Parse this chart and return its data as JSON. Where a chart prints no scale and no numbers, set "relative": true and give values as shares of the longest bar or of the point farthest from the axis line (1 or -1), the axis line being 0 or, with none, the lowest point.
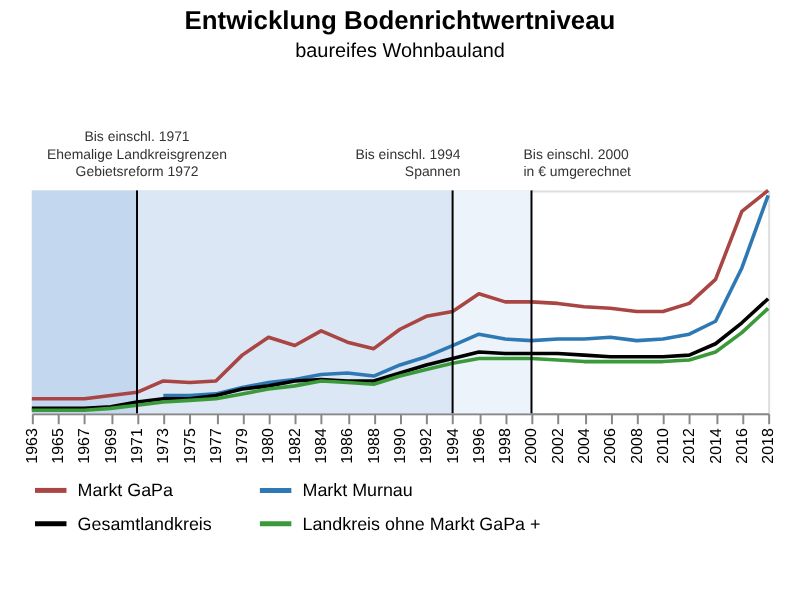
{
  "chart_data": {
    "type": "line",
    "title": "Entwicklung Bodenrichtwertniveau",
    "subtitle": "baureifes Wohnbauland",
    "relative": true,
    "categories": [
      "1963",
      "1965",
      "1967",
      "1969",
      "1971",
      "1973",
      "1975",
      "1977",
      "1979",
      "1980",
      "1982",
      "1984",
      "1986",
      "1988",
      "1990",
      "1992",
      "1994",
      "1996",
      "1998",
      "2000",
      "2002",
      "2004",
      "2006",
      "2008",
      "2010",
      "2012",
      "2014",
      "2016",
      "2018"
    ],
    "series": [
      {
        "name": "Markt GaPa",
        "color": "#a94543",
        "values": [
          0.065,
          0.065,
          0.065,
          0.08,
          0.094,
          0.145,
          0.138,
          0.145,
          0.261,
          0.341,
          0.304,
          0.37,
          0.319,
          0.29,
          0.377,
          0.435,
          0.457,
          0.536,
          0.5,
          0.5,
          0.493,
          0.478,
          0.471,
          0.457,
          0.457,
          0.493,
          0.601,
          0.906,
          1
        ]
      },
      {
        "name": "Markt Murnau",
        "color": "#2e78b4",
        "values": [
          null,
          null,
          null,
          null,
          null,
          0.08,
          0.08,
          0.087,
          0.116,
          0.138,
          0.152,
          0.174,
          0.181,
          0.167,
          0.217,
          0.254,
          0.304,
          0.355,
          0.333,
          0.326,
          0.333,
          0.333,
          0.341,
          0.326,
          0.333,
          0.355,
          0.413,
          0.652,
          0.978
        ]
      },
      {
        "name": "Gesamtlandkreis",
        "color": "#000000",
        "values": [
          0.022,
          0.022,
          0.022,
          0.029,
          0.051,
          0.065,
          0.065,
          0.08,
          0.109,
          0.123,
          0.145,
          0.152,
          0.145,
          0.145,
          0.181,
          0.217,
          0.246,
          0.275,
          0.268,
          0.268,
          0.268,
          0.261,
          0.254,
          0.254,
          0.254,
          0.261,
          0.312,
          0.406,
          0.514
        ]
      },
      {
        "name": "Landkreis ohne Markt GaPa +",
        "color": "#3a9a3a",
        "values": [
          0.014,
          0.014,
          0.014,
          0.022,
          0.036,
          0.051,
          0.058,
          0.065,
          0.087,
          0.109,
          0.123,
          0.145,
          0.138,
          0.13,
          0.167,
          0.196,
          0.225,
          0.246,
          0.246,
          0.246,
          0.239,
          0.232,
          0.232,
          0.232,
          0.232,
          0.239,
          0.275,
          0.362,
          0.471
        ]
      }
    ],
    "bands": [
      {
        "axis": "x",
        "from": "1963",
        "to": "1971",
        "color": "#c3d8ee"
      },
      {
        "axis": "x",
        "from": "1971",
        "to": "1994",
        "color": "#dbe7f4"
      },
      {
        "axis": "x",
        "from": "1994",
        "to": "2000",
        "color": "#edf3fa"
      }
    ],
    "ref_lines": [
      {
        "axis": "x",
        "value": "1971",
        "label": "Bis einschl. 1971\nEhemalige Landkreisgrenzen\nGebietsreform 1972",
        "color": "#000000"
      },
      {
        "axis": "x",
        "value": "1994",
        "label": "Bis einschl. 1994\nSpannen",
        "color": "#000000"
      },
      {
        "axis": "x",
        "value": "2000",
        "label": "Bis einschl. 2000\nin € umgerechnet",
        "color": "#000000"
      }
    ],
    "legend": "bottom"
  }
}
